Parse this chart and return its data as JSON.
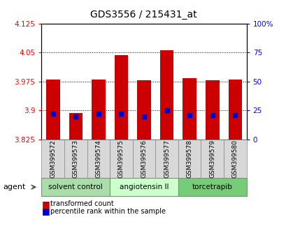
{
  "title": "GDS3556 / 215431_at",
  "samples": [
    "GSM399572",
    "GSM399573",
    "GSM399574",
    "GSM399575",
    "GSM399576",
    "GSM399577",
    "GSM399578",
    "GSM399579",
    "GSM399580"
  ],
  "transformed_counts": [
    3.98,
    3.893,
    3.98,
    4.043,
    3.978,
    4.055,
    3.984,
    3.979,
    3.98
  ],
  "percentile_ranks": [
    22,
    20,
    22,
    22,
    20,
    25,
    21,
    21,
    21
  ],
  "ymin": 3.825,
  "ymax": 4.125,
  "yticks_left": [
    3.825,
    3.9,
    3.975,
    4.05,
    4.125
  ],
  "yticks_right_vals": [
    0,
    25,
    50,
    75,
    100
  ],
  "yticks_right_labels": [
    "0",
    "25",
    "50",
    "75",
    "100%"
  ],
  "grid_lines": [
    3.9,
    3.975,
    4.05
  ],
  "bar_color": "#cc0000",
  "percentile_color": "#0000cc",
  "bar_bottom": 3.825,
  "bar_width": 0.6,
  "groups": [
    {
      "label": "solvent control",
      "indices": [
        0,
        1,
        2
      ],
      "color": "#aaddaa"
    },
    {
      "label": "angiotensin II",
      "indices": [
        3,
        4,
        5
      ],
      "color": "#ccffcc"
    },
    {
      "label": "torcetrapib",
      "indices": [
        6,
        7,
        8
      ],
      "color": "#77cc77"
    }
  ],
  "agent_label": "agent",
  "legend_items": [
    {
      "color": "#cc0000",
      "label": "transformed count"
    },
    {
      "color": "#0000cc",
      "label": "percentile rank within the sample"
    }
  ],
  "title_fontsize": 10,
  "tick_fontsize": 7.5,
  "sample_fontsize": 6.5,
  "group_fontsize": 7.5,
  "legend_fontsize": 7
}
